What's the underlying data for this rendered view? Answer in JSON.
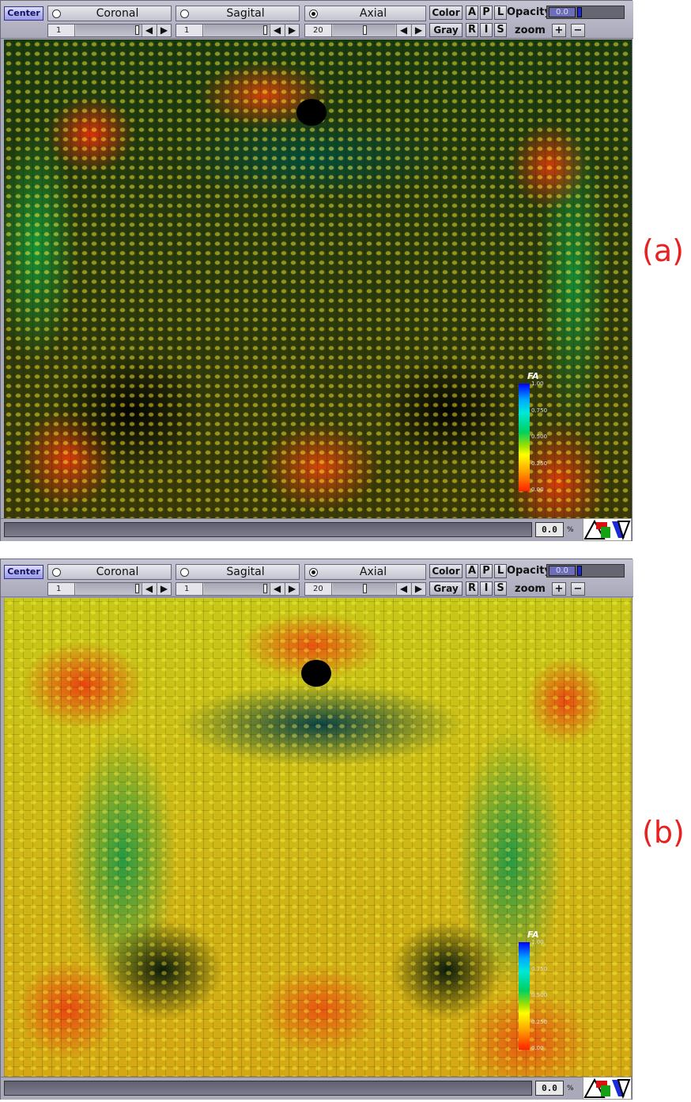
{
  "panels": [
    {
      "figure_label": "(a)",
      "toolbar": {
        "center_label": "Center",
        "coronal_label": "Coronal",
        "sagital_label": "Sagital",
        "axial_label": "Axial",
        "color_label": "Color",
        "gray_label": "Gray",
        "view_buttons": [
          "A",
          "P",
          "L",
          "R",
          "I",
          "S"
        ],
        "opacity_label": "Opacity",
        "opacity_value": "0.0",
        "zoom_label": "zoom",
        "zoom_in": "+",
        "zoom_out": "−",
        "coronal_slice": "1",
        "sagital_slice": "1",
        "axial_slice": "20",
        "selected_plane": "Axial"
      },
      "legend": {
        "title": "FA",
        "ticks": [
          "1.00",
          "0.750",
          "0.500",
          "0.250",
          "0.00"
        ]
      },
      "status": {
        "percent": "0.0",
        "percent_sign": "%"
      }
    },
    {
      "figure_label": "(b)",
      "toolbar": {
        "center_label": "Center",
        "coronal_label": "Coronal",
        "sagital_label": "Sagital",
        "axial_label": "Axial",
        "color_label": "Color",
        "gray_label": "Gray",
        "view_buttons": [
          "A",
          "P",
          "L",
          "R",
          "I",
          "S"
        ],
        "opacity_label": "Opacity",
        "opacity_value": "0.0",
        "zoom_label": "zoom",
        "zoom_in": "+",
        "zoom_out": "−",
        "coronal_slice": "1",
        "sagital_slice": "1",
        "axial_slice": "20",
        "selected_plane": "Axial"
      },
      "legend": {
        "title": "FA",
        "ticks": [
          "1.00",
          "0.750",
          "0.500",
          "0.250",
          "0.00"
        ]
      },
      "status": {
        "percent": "0.0",
        "percent_sign": "%"
      }
    }
  ]
}
